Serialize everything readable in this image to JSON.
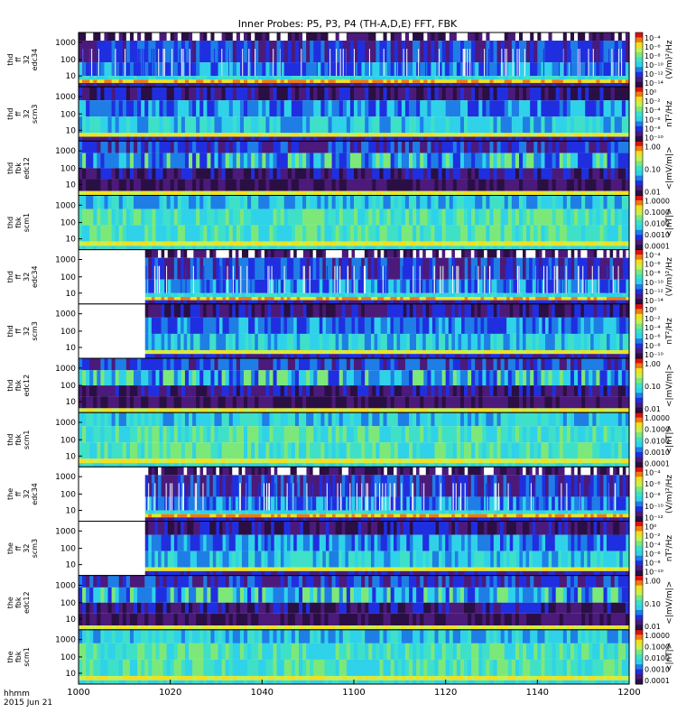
{
  "chart_data": {
    "type": "heatmap",
    "title": "Inner Probes: P5, P3, P4 (TH-A,D,E) FFT, FBK",
    "footer": [
      "hhmm",
      "2015 Jun 21"
    ],
    "x_ticks": [
      "1000",
      "1020",
      "1040",
      "1100",
      "1120",
      "1140",
      "1200"
    ],
    "colors": {
      "dark": "#2a0f44",
      "purple": "#4b1a7a",
      "blue": "#1f2fe0",
      "midblue": "#1e7ee6",
      "cyan": "#2fd2e8",
      "teal": "#3fe0c8",
      "green": "#7de87a",
      "lime": "#c8f050",
      "yellow": "#f0e020",
      "orange": "#f07a10",
      "red": "#e01010"
    },
    "panels": [
      {
        "label": [
          "thd",
          "ff",
          "32",
          "edc34"
        ],
        "yticks": [
          "1000",
          "100",
          "10"
        ],
        "cb_ticks": [
          "10⁻⁴",
          "10⁻⁶",
          "10⁻⁸",
          "10⁻¹⁰",
          "10⁻¹²",
          "10⁻¹⁴"
        ],
        "unit": "(V/m)²/Hz",
        "type": "fft",
        "start": 0
      },
      {
        "label": [
          "thd",
          "ff",
          "32",
          "scm3"
        ],
        "yticks": [
          "1000",
          "100",
          "10"
        ],
        "cb_ticks": [
          "10⁰",
          "10⁻²",
          "10⁻⁴",
          "10⁻⁶",
          "10⁻⁸",
          "10⁻¹⁰"
        ],
        "unit": "nT²/Hz",
        "type": "scm",
        "start": 0
      },
      {
        "label": [
          "thd",
          "fbk",
          "edc12"
        ],
        "yticks": [
          "1000",
          "100",
          "10"
        ],
        "cb_ticks": [
          "1.00",
          "0.10",
          "0.01"
        ],
        "unit": "<|mV/m|>",
        "type": "fbke",
        "start": 0
      },
      {
        "label": [
          "thd",
          "fbk",
          "scm1"
        ],
        "yticks": [
          "1000",
          "100",
          "10"
        ],
        "cb_ticks": [
          "1.0000",
          "0.1000",
          "0.0100",
          "0.0010",
          "0.0001"
        ],
        "unit": "<|nT|>",
        "type": "fbkb",
        "start": 0
      },
      {
        "label": [
          "thd",
          "ff",
          "32",
          "edc34"
        ],
        "yticks": [
          "1000",
          "100",
          "10"
        ],
        "cb_ticks": [
          "10⁻⁴",
          "10⁻⁶",
          "10⁻⁸",
          "10⁻¹⁰",
          "10⁻¹²",
          "10⁻¹⁴"
        ],
        "unit": "(V/m)²/Hz",
        "type": "fft",
        "start": 14.5
      },
      {
        "label": [
          "thd",
          "ff",
          "32",
          "scm3"
        ],
        "yticks": [
          "1000",
          "100",
          "10"
        ],
        "cb_ticks": [
          "10⁰",
          "10⁻²",
          "10⁻⁴",
          "10⁻⁶",
          "10⁻⁸",
          "10⁻¹⁰"
        ],
        "unit": "nT²/Hz",
        "type": "scm",
        "start": 14.5
      },
      {
        "label": [
          "thd",
          "fbk",
          "edc12"
        ],
        "yticks": [
          "1000",
          "100",
          "10"
        ],
        "cb_ticks": [
          "1.00",
          "0.10",
          "0.01"
        ],
        "unit": "<|mV/m|>",
        "type": "fbke",
        "start": 0
      },
      {
        "label": [
          "thd",
          "fbk",
          "scm1"
        ],
        "yticks": [
          "1000",
          "100",
          "10"
        ],
        "cb_ticks": [
          "1.0000",
          "0.1000",
          "0.0100",
          "0.0010",
          "0.0001"
        ],
        "unit": "<|nT|>",
        "type": "fbkb",
        "start": 0
      },
      {
        "label": [
          "the",
          "ff",
          "32",
          "edc34"
        ],
        "yticks": [
          "1000",
          "100",
          "10"
        ],
        "cb_ticks": [
          "10⁻⁴",
          "10⁻⁶",
          "10⁻⁸",
          "10⁻¹⁰",
          "10⁻¹²"
        ],
        "unit": "(V/m)²/Hz",
        "type": "fft",
        "start": 14.5
      },
      {
        "label": [
          "the",
          "ff",
          "32",
          "scm3"
        ],
        "yticks": [
          "1000",
          "100",
          "10"
        ],
        "cb_ticks": [
          "10⁰",
          "10⁻²",
          "10⁻⁴",
          "10⁻⁶",
          "10⁻⁸",
          "10⁻¹⁰"
        ],
        "unit": "nT²/Hz",
        "type": "scm",
        "start": 14.5
      },
      {
        "label": [
          "the",
          "fbk",
          "edc12"
        ],
        "yticks": [
          "1000",
          "100",
          "10"
        ],
        "cb_ticks": [
          "1.00",
          "0.10",
          "0.01"
        ],
        "unit": "<|mV/m|>",
        "type": "fbke",
        "start": 0
      },
      {
        "label": [
          "the",
          "fbk",
          "scm1"
        ],
        "yticks": [
          "1000",
          "100",
          "10"
        ],
        "cb_ticks": [
          "1.0000",
          "0.1000",
          "0.0100",
          "0.0010",
          "0.0001"
        ],
        "unit": "<|nT|>",
        "type": "fbkb",
        "start": 0
      }
    ]
  }
}
